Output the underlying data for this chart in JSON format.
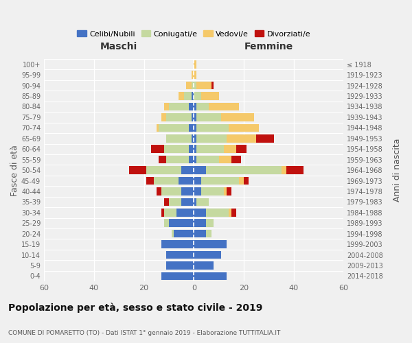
{
  "age_groups": [
    "0-4",
    "5-9",
    "10-14",
    "15-19",
    "20-24",
    "25-29",
    "30-34",
    "35-39",
    "40-44",
    "45-49",
    "50-54",
    "55-59",
    "60-64",
    "65-69",
    "70-74",
    "75-79",
    "80-84",
    "85-89",
    "90-94",
    "95-99",
    "100+"
  ],
  "birth_years": [
    "2014-2018",
    "2009-2013",
    "2004-2008",
    "1999-2003",
    "1994-1998",
    "1989-1993",
    "1984-1988",
    "1979-1983",
    "1974-1978",
    "1969-1973",
    "1964-1968",
    "1959-1963",
    "1954-1958",
    "1949-1953",
    "1944-1948",
    "1939-1943",
    "1934-1938",
    "1929-1933",
    "1924-1928",
    "1919-1923",
    "≤ 1918"
  ],
  "maschi": {
    "celibi": [
      13,
      11,
      11,
      13,
      8,
      10,
      7,
      5,
      5,
      6,
      5,
      2,
      2,
      1,
      2,
      1,
      2,
      1,
      0,
      0,
      0
    ],
    "coniugati": [
      0,
      0,
      0,
      0,
      1,
      2,
      5,
      5,
      8,
      10,
      14,
      9,
      10,
      10,
      12,
      10,
      8,
      3,
      1,
      0,
      0
    ],
    "vedovi": [
      0,
      0,
      0,
      0,
      0,
      0,
      0,
      0,
      0,
      0,
      0,
      0,
      0,
      0,
      1,
      2,
      2,
      2,
      2,
      1,
      0
    ],
    "divorziati": [
      0,
      0,
      0,
      0,
      0,
      0,
      1,
      2,
      2,
      3,
      7,
      3,
      5,
      0,
      0,
      0,
      0,
      0,
      0,
      0,
      0
    ]
  },
  "femmine": {
    "nubili": [
      13,
      8,
      11,
      13,
      5,
      5,
      5,
      1,
      3,
      3,
      5,
      1,
      1,
      1,
      1,
      1,
      1,
      0,
      0,
      0,
      0
    ],
    "coniugate": [
      0,
      0,
      0,
      0,
      2,
      3,
      9,
      5,
      9,
      15,
      30,
      9,
      11,
      12,
      13,
      10,
      5,
      3,
      1,
      0,
      0
    ],
    "vedove": [
      0,
      0,
      0,
      0,
      0,
      0,
      1,
      0,
      1,
      2,
      2,
      5,
      5,
      12,
      12,
      13,
      12,
      7,
      6,
      1,
      1
    ],
    "divorziate": [
      0,
      0,
      0,
      0,
      0,
      0,
      2,
      0,
      2,
      2,
      7,
      4,
      4,
      7,
      0,
      0,
      0,
      0,
      1,
      0,
      0
    ]
  },
  "colors": {
    "celibi": "#4472C4",
    "coniugati": "#c5d9a0",
    "vedovi": "#f5c96a",
    "divorziati": "#c0110e"
  },
  "xlim": 60,
  "title": "Popolazione per età, sesso e stato civile - 2019",
  "subtitle": "COMUNE DI POMARETTO (TO) - Dati ISTAT 1° gennaio 2019 - Elaborazione TUTTITALIA.IT",
  "ylabel_left": "Fasce di età",
  "ylabel_right": "Anni di nascita",
  "xlabel_maschi": "Maschi",
  "xlabel_femmine": "Femmine",
  "legend_labels": [
    "Celibi/Nubili",
    "Coniugati/e",
    "Vedovi/e",
    "Divorziati/e"
  ],
  "bg_color": "#f0f0f0"
}
